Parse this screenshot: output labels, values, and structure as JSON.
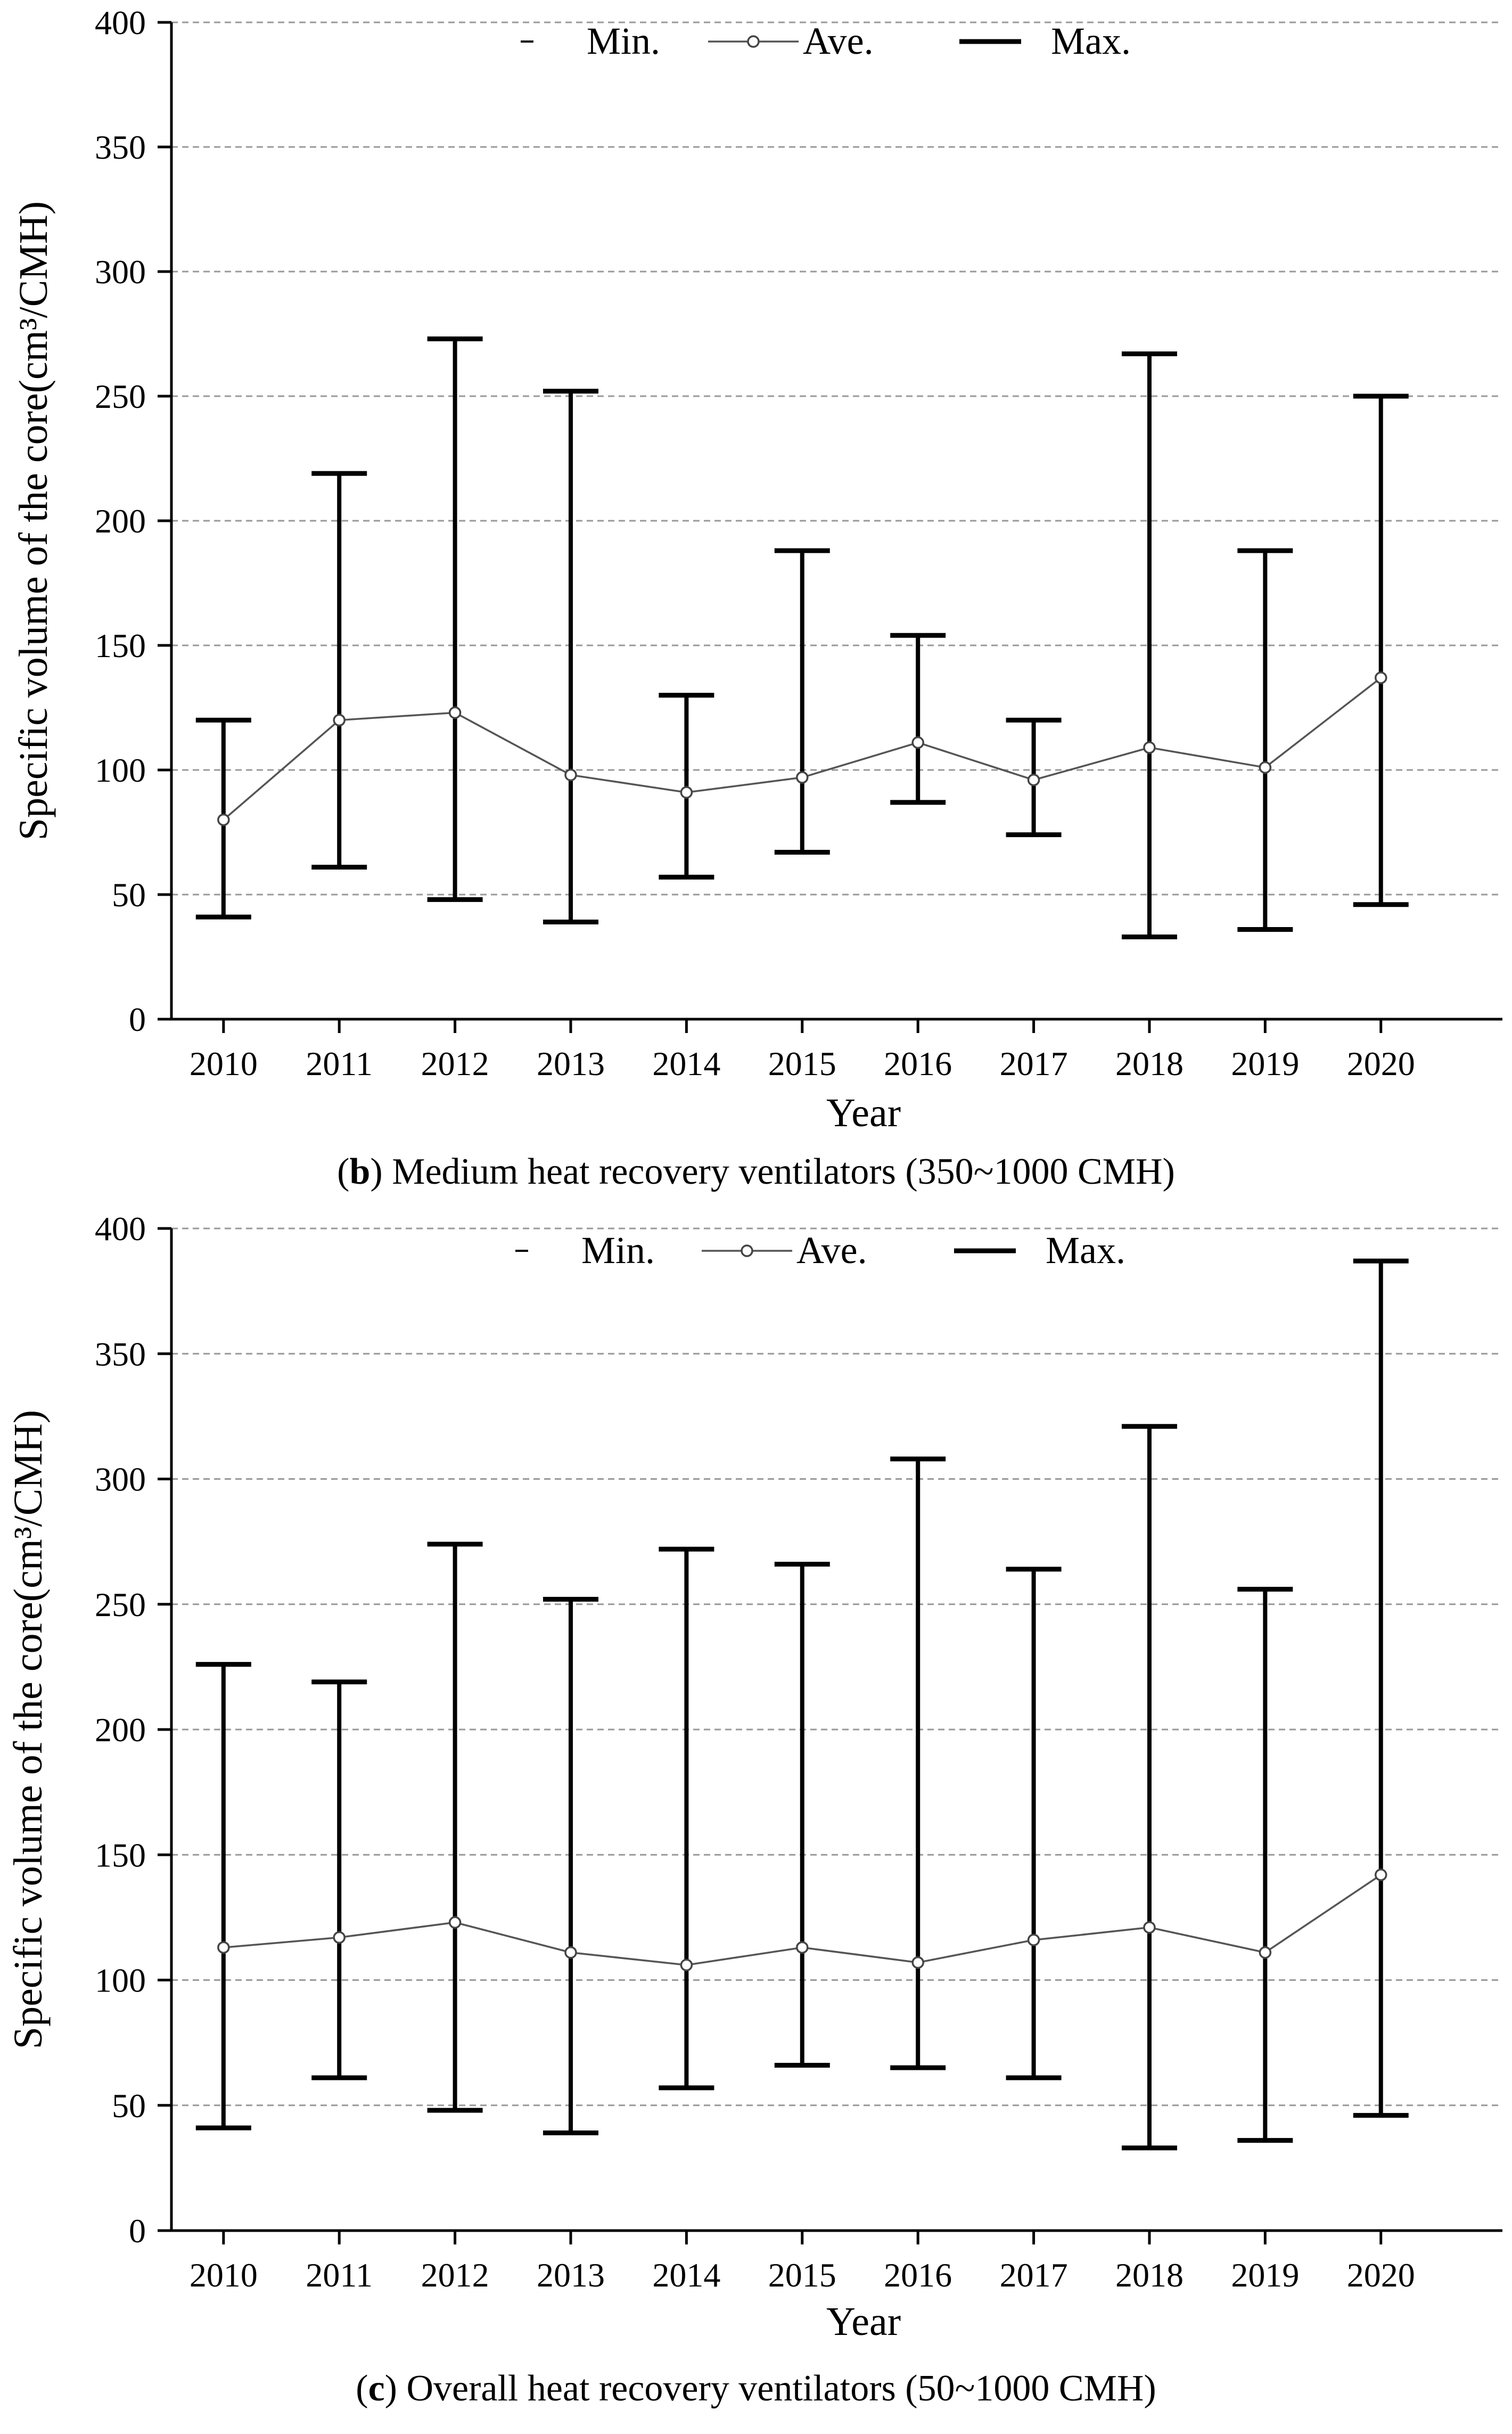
{
  "chart_data": [
    {
      "type": "errorbar",
      "panel_label": "b",
      "caption": "Medium heat recovery ventilators (350~1000 CMH)",
      "xlabel": "Year",
      "ylabel": "Specific volume of the core(cm³/CMH)",
      "ylim": [
        0,
        400
      ],
      "yticks": [
        0,
        50,
        100,
        150,
        200,
        250,
        300,
        350,
        400
      ],
      "grid": "horizontal dashed",
      "legend": [
        "Min.",
        "Ave.",
        "Max."
      ],
      "categories": [
        "2010",
        "2011",
        "2012",
        "2013",
        "2014",
        "2015",
        "2016",
        "2017",
        "2018",
        "2019",
        "2020"
      ],
      "series": [
        {
          "name": "Min.",
          "values": [
            41,
            61,
            48,
            39,
            57,
            67,
            87,
            74,
            33,
            36,
            46
          ]
        },
        {
          "name": "Ave.",
          "values": [
            80,
            120,
            123,
            98,
            91,
            97,
            111,
            96,
            109,
            101,
            137
          ]
        },
        {
          "name": "Max.",
          "values": [
            120,
            219,
            273,
            252,
            130,
            188,
            154,
            120,
            267,
            188,
            250
          ]
        }
      ]
    },
    {
      "type": "errorbar",
      "panel_label": "c",
      "caption": "Overall heat recovery ventilators (50~1000 CMH)",
      "xlabel": "Year",
      "ylabel": "Specific volume of the core(cm³/CMH)",
      "ylim": [
        0,
        400
      ],
      "yticks": [
        0,
        50,
        100,
        150,
        200,
        250,
        300,
        350,
        400
      ],
      "grid": "horizontal dashed",
      "legend": [
        "Min.",
        "Ave.",
        "Max."
      ],
      "categories": [
        "2010",
        "2011",
        "2012",
        "2013",
        "2014",
        "2015",
        "2016",
        "2017",
        "2018",
        "2019",
        "2020"
      ],
      "series": [
        {
          "name": "Min.",
          "values": [
            41,
            61,
            48,
            39,
            57,
            66,
            65,
            61,
            33,
            36,
            46
          ]
        },
        {
          "name": "Ave.",
          "values": [
            113,
            117,
            123,
            111,
            106,
            113,
            107,
            116,
            121,
            111,
            142
          ]
        },
        {
          "name": "Max.",
          "values": [
            226,
            219,
            274,
            252,
            272,
            266,
            308,
            264,
            321,
            256,
            387
          ]
        }
      ]
    }
  ]
}
